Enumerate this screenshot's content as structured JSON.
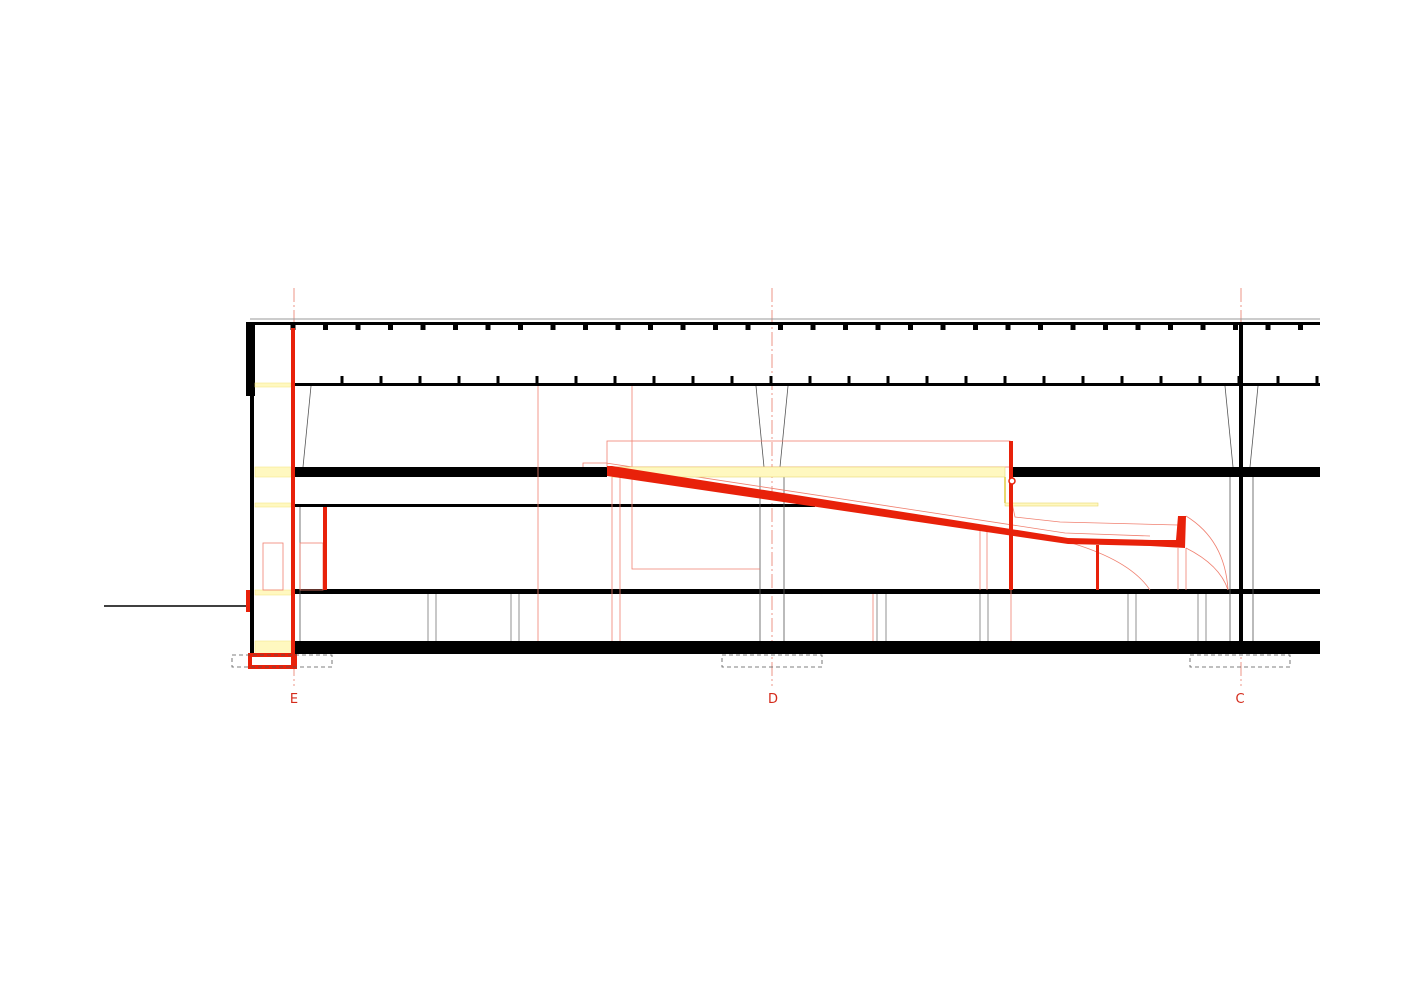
{
  "drawing": {
    "type": "architectural-section",
    "grid_axes": [
      {
        "label": "E"
      },
      {
        "label": "D"
      },
      {
        "label": "C"
      }
    ],
    "colors": {
      "structure": "#000000",
      "cut_elements": "#e8210a",
      "projection_lines": "#f08070",
      "glazing_fill": "#fff8c0",
      "grid_lines": "#e87a6a"
    }
  }
}
